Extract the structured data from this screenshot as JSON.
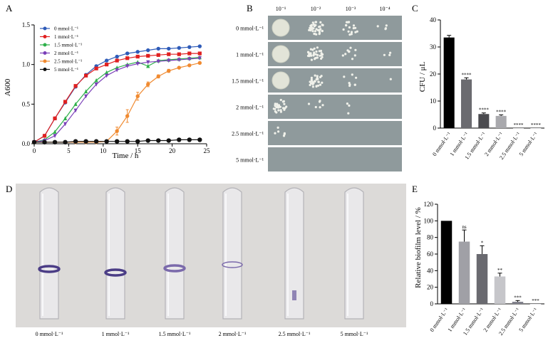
{
  "panel_labels": [
    "A",
    "B",
    "C",
    "D",
    "E"
  ],
  "chart_data": [
    {
      "id": "A",
      "type": "line",
      "xlabel": "Time / h",
      "ylabel": "A600",
      "xlim": [
        0,
        25
      ],
      "ylim": [
        0,
        1.5
      ],
      "xticks": [
        "0",
        "5",
        "10",
        "15",
        "20",
        "25"
      ],
      "yticks": [
        "0.0",
        "0.5",
        "1.0",
        "1.5"
      ],
      "legend_position": "top-left",
      "series": [
        {
          "name": "0 mmol·L⁻¹",
          "color": "#2e5bb8",
          "marker": "circle",
          "x": [
            0,
            1.5,
            3,
            4.5,
            6,
            7.5,
            9,
            10.5,
            12,
            13.5,
            15,
            16.5,
            18,
            19.5,
            21,
            22.5,
            24
          ],
          "y": [
            0.02,
            0.1,
            0.32,
            0.52,
            0.72,
            0.87,
            0.98,
            1.05,
            1.1,
            1.14,
            1.16,
            1.18,
            1.2,
            1.2,
            1.21,
            1.22,
            1.23
          ]
        },
        {
          "name": "1 mmol·L⁻¹",
          "color": "#e02020",
          "marker": "square",
          "x": [
            0,
            1.5,
            3,
            4.5,
            6,
            7.5,
            9,
            10.5,
            12,
            13.5,
            15,
            16.5,
            18,
            19.5,
            21,
            22.5,
            24
          ],
          "y": [
            0.02,
            0.1,
            0.32,
            0.53,
            0.73,
            0.86,
            0.95,
            1.0,
            1.05,
            1.08,
            1.1,
            1.11,
            1.12,
            1.13,
            1.13,
            1.14,
            1.14
          ]
        },
        {
          "name": "1.5 mmol·L⁻¹",
          "color": "#2eb04a",
          "marker": "triangle-up",
          "x": [
            0,
            1.5,
            3,
            4.5,
            6,
            7.5,
            9,
            10.5,
            12,
            13.5,
            15,
            16.5,
            18,
            19.5,
            21,
            22.5,
            24
          ],
          "y": [
            0.02,
            0.05,
            0.15,
            0.32,
            0.5,
            0.66,
            0.8,
            0.9,
            0.96,
            1.0,
            1.03,
            0.98,
            1.05,
            1.06,
            1.07,
            1.08,
            1.09
          ]
        },
        {
          "name": "2 mmol·L⁻¹",
          "color": "#7a3fb8",
          "marker": "triangle-down",
          "x": [
            0,
            1.5,
            3,
            4.5,
            6,
            7.5,
            9,
            10.5,
            12,
            13.5,
            15,
            16.5,
            18,
            19.5,
            21,
            22.5,
            24
          ],
          "y": [
            0.02,
            0.04,
            0.1,
            0.25,
            0.42,
            0.6,
            0.75,
            0.86,
            0.93,
            0.98,
            1.01,
            1.03,
            1.04,
            1.05,
            1.06,
            1.07,
            1.08
          ]
        },
        {
          "name": "2.5 mmol·L⁻¹",
          "color": "#f08a30",
          "marker": "circle",
          "x": [
            0,
            1.5,
            3,
            4.5,
            6,
            7.5,
            9,
            10.5,
            12,
            13.5,
            15,
            16.5,
            18,
            19.5,
            21,
            22.5,
            24
          ],
          "y": [
            0.02,
            0.02,
            0.02,
            0.02,
            0.02,
            0.02,
            0.02,
            0.03,
            0.16,
            0.35,
            0.6,
            0.75,
            0.85,
            0.92,
            0.96,
            0.99,
            1.02
          ],
          "err": [
            0,
            0,
            0,
            0,
            0,
            0,
            0,
            0.01,
            0.05,
            0.08,
            0.05,
            0.03,
            0.02,
            0.02,
            0.01,
            0.01,
            0.01
          ]
        },
        {
          "name": "5 mmol·L⁻¹",
          "color": "#111111",
          "marker": "circle",
          "x": [
            0,
            1.5,
            3,
            4.5,
            6,
            7.5,
            9,
            10.5,
            12,
            13.5,
            15,
            16.5,
            18,
            19.5,
            21,
            22.5,
            24
          ],
          "y": [
            0.02,
            0.02,
            0.02,
            0.02,
            0.03,
            0.03,
            0.03,
            0.03,
            0.03,
            0.03,
            0.03,
            0.04,
            0.04,
            0.04,
            0.05,
            0.05,
            0.05
          ]
        }
      ]
    },
    {
      "id": "C",
      "type": "bar",
      "ylabel": "CFU / μL",
      "ylim": [
        0,
        40
      ],
      "yticks": [
        "0",
        "10",
        "20",
        "30",
        "40"
      ],
      "categories": [
        "0 mmol·L⁻¹",
        "1 mmol·L⁻¹",
        "1.5 mmol·L⁻¹",
        "2 mmol·L⁻¹",
        "2.5 mmol·L⁻¹",
        "5 mmol·L⁻¹"
      ],
      "values": [
        33.5,
        18,
        5.2,
        4.5,
        0,
        0
      ],
      "errors": [
        0.8,
        0.6,
        0.4,
        0.4,
        0,
        0
      ],
      "colors": [
        "#000000",
        "#6b6b70",
        "#4a4a4e",
        "#a9a9ad",
        "#c8c8cc",
        "#dcdce0"
      ],
      "annotations": [
        "",
        "****",
        "****",
        "****",
        "****",
        "****"
      ]
    },
    {
      "id": "E",
      "type": "bar",
      "ylabel": "Relative biofilm level / %",
      "ylim": [
        0,
        120
      ],
      "yticks": [
        "0",
        "20",
        "40",
        "60",
        "80",
        "100",
        "120"
      ],
      "categories": [
        "0 mmol·L⁻¹",
        "1 mmol·L⁻¹",
        "1.5 mmol·L⁻¹",
        "2 mmol·L⁻¹",
        "2.5 mmol·L⁻¹",
        "5 mmol·L⁻¹"
      ],
      "values": [
        100,
        75,
        60,
        33,
        2.5,
        0
      ],
      "errors": [
        0,
        14,
        10,
        4,
        1.5,
        0
      ],
      "colors": [
        "#000000",
        "#a0a0a6",
        "#6a6a70",
        "#c6c6ca",
        "#80808a",
        "#d6d6da"
      ],
      "annotations": [
        "",
        "ns",
        "*",
        "**",
        "***",
        "***"
      ]
    }
  ],
  "panel_b": {
    "dilutions": [
      "10⁻¹",
      "10⁻²",
      "10⁻³",
      "10⁻⁴"
    ],
    "rows": [
      "0 mmol·L⁻¹",
      "1 mmol·L⁻¹",
      "1.5 mmol·L⁻¹",
      "2 mmol·L⁻¹",
      "2.5 mmol·L⁻¹",
      "5 mmol·L⁻¹"
    ]
  },
  "panel_d": {
    "tubes": [
      "0 mmol·L⁻¹",
      "1 mmol·L⁻¹",
      "1.5 mmol·L⁻¹",
      "2 mmol·L⁻¹",
      "2.5 mmol·L⁻¹",
      "5 mmol·L⁻¹"
    ]
  }
}
